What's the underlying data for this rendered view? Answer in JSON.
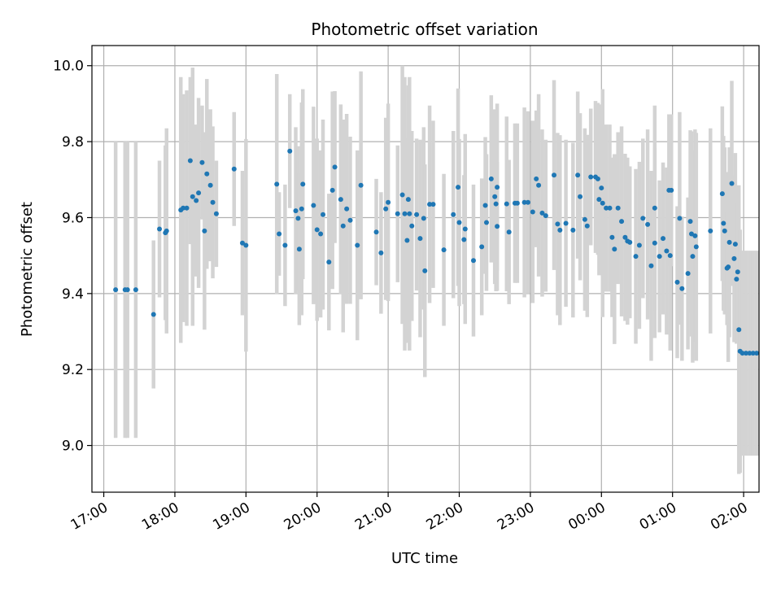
{
  "chart_data": {
    "type": "scatter",
    "title": "Photometric offset variation",
    "xlabel": "UTC time",
    "ylabel": "Photometric offset",
    "x_unit": "UTC time (hours, values past 24 are after midnight)",
    "xlim": [
      "16:50",
      "02:13"
    ],
    "ylim": [
      8.877,
      10.053
    ],
    "x_ticks": [
      "17:00",
      "18:00",
      "19:00",
      "20:00",
      "21:00",
      "22:00",
      "23:00",
      "00:00",
      "01:00",
      "02:00"
    ],
    "y_ticks": [
      "9.0",
      "9.2",
      "9.4",
      "9.6",
      "9.8",
      "10.0"
    ],
    "grid": true,
    "series": [
      {
        "point_color": "#1f77b4",
        "errorbar_color": "#d3d3d3",
        "points": [
          {
            "t": "17:10",
            "y": 9.41,
            "err": 0.39
          },
          {
            "t": "17:18",
            "y": 9.41,
            "err": 0.39
          },
          {
            "t": "17:20",
            "y": 9.41,
            "err": 0.39
          },
          {
            "t": "17:27",
            "y": 9.41,
            "err": 0.39
          },
          {
            "t": "17:42",
            "y": 9.345,
            "err": 0.195
          },
          {
            "t": "17:47",
            "y": 9.57,
            "err": 0.18
          },
          {
            "t": "17:52",
            "y": 9.56,
            "err": 0.23
          },
          {
            "t": "17:53",
            "y": 9.565,
            "err": 0.27
          },
          {
            "t": "18:05",
            "y": 9.62,
            "err": 0.35
          },
          {
            "t": "18:07",
            "y": 9.625,
            "err": 0.3
          },
          {
            "t": "18:10",
            "y": 9.625,
            "err": 0.31
          },
          {
            "t": "18:13",
            "y": 9.75,
            "err": 0.22
          },
          {
            "t": "18:15",
            "y": 9.655,
            "err": 0.34
          },
          {
            "t": "18:18",
            "y": 9.645,
            "err": 0.2
          },
          {
            "t": "18:20",
            "y": 9.665,
            "err": 0.25
          },
          {
            "t": "18:23",
            "y": 9.745,
            "err": 0.15
          },
          {
            "t": "18:25",
            "y": 9.565,
            "err": 0.26
          },
          {
            "t": "18:27",
            "y": 9.715,
            "err": 0.25
          },
          {
            "t": "18:30",
            "y": 9.685,
            "err": 0.2
          },
          {
            "t": "18:32",
            "y": 9.64,
            "err": 0.2
          },
          {
            "t": "18:35",
            "y": 9.61,
            "err": 0.14
          },
          {
            "t": "18:50",
            "y": 9.728,
            "err": 0.15
          },
          {
            "t": "18:57",
            "y": 9.533,
            "err": 0.19
          },
          {
            "t": "19:00",
            "y": 9.527,
            "err": 0.28
          },
          {
            "t": "19:26",
            "y": 9.688,
            "err": 0.29
          },
          {
            "t": "19:28",
            "y": 9.557,
            "err": 0.11
          },
          {
            "t": "19:33",
            "y": 9.527,
            "err": 0.16
          },
          {
            "t": "19:37",
            "y": 9.775,
            "err": 0.15
          },
          {
            "t": "19:42",
            "y": 9.618,
            "err": 0.22
          },
          {
            "t": "19:44",
            "y": 9.598,
            "err": 0.19
          },
          {
            "t": "19:45",
            "y": 9.517,
            "err": 0.2
          },
          {
            "t": "19:47",
            "y": 9.623,
            "err": 0.28
          },
          {
            "t": "19:48",
            "y": 9.688,
            "err": 0.25
          },
          {
            "t": "19:57",
            "y": 9.632,
            "err": 0.26
          },
          {
            "t": "20:00",
            "y": 9.568,
            "err": 0.24
          },
          {
            "t": "20:03",
            "y": 9.557,
            "err": 0.22
          },
          {
            "t": "20:05",
            "y": 9.608,
            "err": 0.25
          },
          {
            "t": "20:10",
            "y": 9.483,
            "err": 0.18
          },
          {
            "t": "20:13",
            "y": 9.672,
            "err": 0.26
          },
          {
            "t": "20:15",
            "y": 9.733,
            "err": 0.2
          },
          {
            "t": "20:20",
            "y": 9.648,
            "err": 0.25
          },
          {
            "t": "20:22",
            "y": 9.578,
            "err": 0.28
          },
          {
            "t": "20:25",
            "y": 9.623,
            "err": 0.25
          },
          {
            "t": "20:28",
            "y": 9.593,
            "err": 0.22
          },
          {
            "t": "20:34",
            "y": 9.527,
            "err": 0.25
          },
          {
            "t": "20:37",
            "y": 9.685,
            "err": 0.3
          },
          {
            "t": "20:50",
            "y": 9.562,
            "err": 0.14
          },
          {
            "t": "20:54",
            "y": 9.507,
            "err": 0.16
          },
          {
            "t": "20:58",
            "y": 9.623,
            "err": 0.24
          },
          {
            "t": "21:00",
            "y": 9.64,
            "err": 0.26
          },
          {
            "t": "21:08",
            "y": 9.61,
            "err": 0.18
          },
          {
            "t": "21:12",
            "y": 9.66,
            "err": 0.34
          },
          {
            "t": "21:14",
            "y": 9.61,
            "err": 0.36
          },
          {
            "t": "21:16",
            "y": 9.54,
            "err": 0.27
          },
          {
            "t": "21:17",
            "y": 9.648,
            "err": 0.3
          },
          {
            "t": "21:18",
            "y": 9.61,
            "err": 0.36
          },
          {
            "t": "21:20",
            "y": 9.578,
            "err": 0.25
          },
          {
            "t": "21:24",
            "y": 9.608,
            "err": 0.2
          },
          {
            "t": "21:27",
            "y": 9.545,
            "err": 0.26
          },
          {
            "t": "21:30",
            "y": 9.598,
            "err": 0.24
          },
          {
            "t": "21:31",
            "y": 9.46,
            "err": 0.28
          },
          {
            "t": "21:35",
            "y": 9.635,
            "err": 0.26
          },
          {
            "t": "21:38",
            "y": 9.635,
            "err": 0.22
          },
          {
            "t": "21:47",
            "y": 9.515,
            "err": 0.2
          },
          {
            "t": "21:55",
            "y": 9.608,
            "err": 0.22
          },
          {
            "t": "21:59",
            "y": 9.68,
            "err": 0.26
          },
          {
            "t": "22:00",
            "y": 9.587,
            "err": 0.22
          },
          {
            "t": "22:04",
            "y": 9.542,
            "err": 0.17
          },
          {
            "t": "22:05",
            "y": 9.57,
            "err": 0.25
          },
          {
            "t": "22:12",
            "y": 9.487,
            "err": 0.2
          },
          {
            "t": "22:19",
            "y": 9.523,
            "err": 0.18
          },
          {
            "t": "22:22",
            "y": 9.632,
            "err": 0.18
          },
          {
            "t": "22:23",
            "y": 9.587,
            "err": 0.18
          },
          {
            "t": "22:27",
            "y": 9.702,
            "err": 0.22
          },
          {
            "t": "22:30",
            "y": 9.655,
            "err": 0.23
          },
          {
            "t": "22:31",
            "y": 9.636,
            "err": 0.23
          },
          {
            "t": "22:32",
            "y": 9.68,
            "err": 0.22
          },
          {
            "t": "22:32",
            "y": 9.577,
            "err": 0.17
          },
          {
            "t": "22:40",
            "y": 9.636,
            "err": 0.23
          },
          {
            "t": "22:42",
            "y": 9.562,
            "err": 0.19
          },
          {
            "t": "22:47",
            "y": 9.638,
            "err": 0.21
          },
          {
            "t": "22:49",
            "y": 9.638,
            "err": 0.21
          },
          {
            "t": "22:55",
            "y": 9.64,
            "err": 0.25
          },
          {
            "t": "22:58",
            "y": 9.64,
            "err": 0.24
          },
          {
            "t": "23:02",
            "y": 9.615,
            "err": 0.24
          },
          {
            "t": "23:05",
            "y": 9.702,
            "err": 0.18
          },
          {
            "t": "23:07",
            "y": 9.685,
            "err": 0.24
          },
          {
            "t": "23:10",
            "y": 9.612,
            "err": 0.22
          },
          {
            "t": "23:13",
            "y": 9.605,
            "err": 0.2
          },
          {
            "t": "23:20",
            "y": 9.712,
            "err": 0.25
          },
          {
            "t": "23:23",
            "y": 9.583,
            "err": 0.24
          },
          {
            "t": "23:25",
            "y": 9.567,
            "err": 0.25
          },
          {
            "t": "23:30",
            "y": 9.585,
            "err": 0.22
          },
          {
            "t": "23:36",
            "y": 9.567,
            "err": 0.23
          },
          {
            "t": "23:40",
            "y": 9.712,
            "err": 0.22
          },
          {
            "t": "23:42",
            "y": 9.655,
            "err": 0.22
          },
          {
            "t": "23:46",
            "y": 9.595,
            "err": 0.24
          },
          {
            "t": "23:48",
            "y": 9.578,
            "err": 0.24
          },
          {
            "t": "23:51",
            "y": 9.707,
            "err": 0.18
          },
          {
            "t": "23:55",
            "y": 9.707,
            "err": 0.2
          },
          {
            "t": "23:57",
            "y": 9.702,
            "err": 0.2
          },
          {
            "t": "23:58",
            "y": 9.648,
            "err": 0.2
          },
          {
            "t": "00:00",
            "y": 9.678,
            "err": 0.22
          },
          {
            "t": "00:01",
            "y": 9.638,
            "err": 0.3
          },
          {
            "t": "00:04",
            "y": 9.625,
            "err": 0.22
          },
          {
            "t": "00:07",
            "y": 9.625,
            "err": 0.22
          },
          {
            "t": "00:09",
            "y": 9.548,
            "err": 0.21
          },
          {
            "t": "00:11",
            "y": 9.517,
            "err": 0.25
          },
          {
            "t": "00:14",
            "y": 9.625,
            "err": 0.2
          },
          {
            "t": "00:17",
            "y": 9.59,
            "err": 0.25
          },
          {
            "t": "00:20",
            "y": 9.548,
            "err": 0.22
          },
          {
            "t": "00:22",
            "y": 9.538,
            "err": 0.22
          },
          {
            "t": "00:24",
            "y": 9.535,
            "err": 0.2
          },
          {
            "t": "00:29",
            "y": 9.498,
            "err": 0.23
          },
          {
            "t": "00:32",
            "y": 9.527,
            "err": 0.22
          },
          {
            "t": "00:35",
            "y": 9.598,
            "err": 0.21
          },
          {
            "t": "00:39",
            "y": 9.582,
            "err": 0.25
          },
          {
            "t": "00:42",
            "y": 9.473,
            "err": 0.25
          },
          {
            "t": "00:45",
            "y": 9.533,
            "err": 0.25
          },
          {
            "t": "00:45",
            "y": 9.625,
            "err": 0.27
          },
          {
            "t": "00:49",
            "y": 9.498,
            "err": 0.2
          },
          {
            "t": "00:52",
            "y": 9.545,
            "err": 0.2
          },
          {
            "t": "00:55",
            "y": 9.512,
            "err": 0.22
          },
          {
            "t": "00:57",
            "y": 9.672,
            "err": 0.2
          },
          {
            "t": "00:58",
            "y": 9.5,
            "err": 0.25
          },
          {
            "t": "00:59",
            "y": 9.672,
            "err": 0.2
          },
          {
            "t": "01:04",
            "y": 9.43,
            "err": 0.2
          },
          {
            "t": "01:06",
            "y": 9.598,
            "err": 0.28
          },
          {
            "t": "01:08",
            "y": 9.413,
            "err": 0.19
          },
          {
            "t": "01:13",
            "y": 9.453,
            "err": 0.2
          },
          {
            "t": "01:15",
            "y": 9.59,
            "err": 0.24
          },
          {
            "t": "01:16",
            "y": 9.557,
            "err": 0.27
          },
          {
            "t": "01:17",
            "y": 9.498,
            "err": 0.28
          },
          {
            "t": "01:19",
            "y": 9.552,
            "err": 0.28
          },
          {
            "t": "01:20",
            "y": 9.523,
            "err": 0.3
          },
          {
            "t": "01:32",
            "y": 9.565,
            "err": 0.27
          },
          {
            "t": "01:42",
            "y": 9.663,
            "err": 0.23
          },
          {
            "t": "01:43",
            "y": 9.585,
            "err": 0.23
          },
          {
            "t": "01:44",
            "y": 9.565,
            "err": 0.22
          },
          {
            "t": "01:46",
            "y": 9.467,
            "err": 0.15
          },
          {
            "t": "01:47",
            "y": 9.47,
            "err": 0.25
          },
          {
            "t": "01:48",
            "y": 9.535,
            "err": 0.25
          },
          {
            "t": "01:50",
            "y": 9.69,
            "err": 0.27
          },
          {
            "t": "01:52",
            "y": 9.492,
            "err": 0.22
          },
          {
            "t": "01:53",
            "y": 9.53,
            "err": 0.24
          },
          {
            "t": "01:54",
            "y": 9.438,
            "err": 0.17
          },
          {
            "t": "01:55",
            "y": 9.457,
            "err": 0.18
          },
          {
            "t": "01:56",
            "y": 9.305,
            "err": 0.38
          },
          {
            "t": "01:57",
            "y": 9.248,
            "err": 0.32
          },
          {
            "t": "01:59",
            "y": 9.243,
            "err": 0.27
          },
          {
            "t": "02:02",
            "y": 9.243,
            "err": 0.27
          },
          {
            "t": "02:05",
            "y": 9.243,
            "err": 0.27
          },
          {
            "t": "02:08",
            "y": 9.243,
            "err": 0.27
          },
          {
            "t": "02:11",
            "y": 9.243,
            "err": 0.27
          }
        ]
      }
    ]
  }
}
